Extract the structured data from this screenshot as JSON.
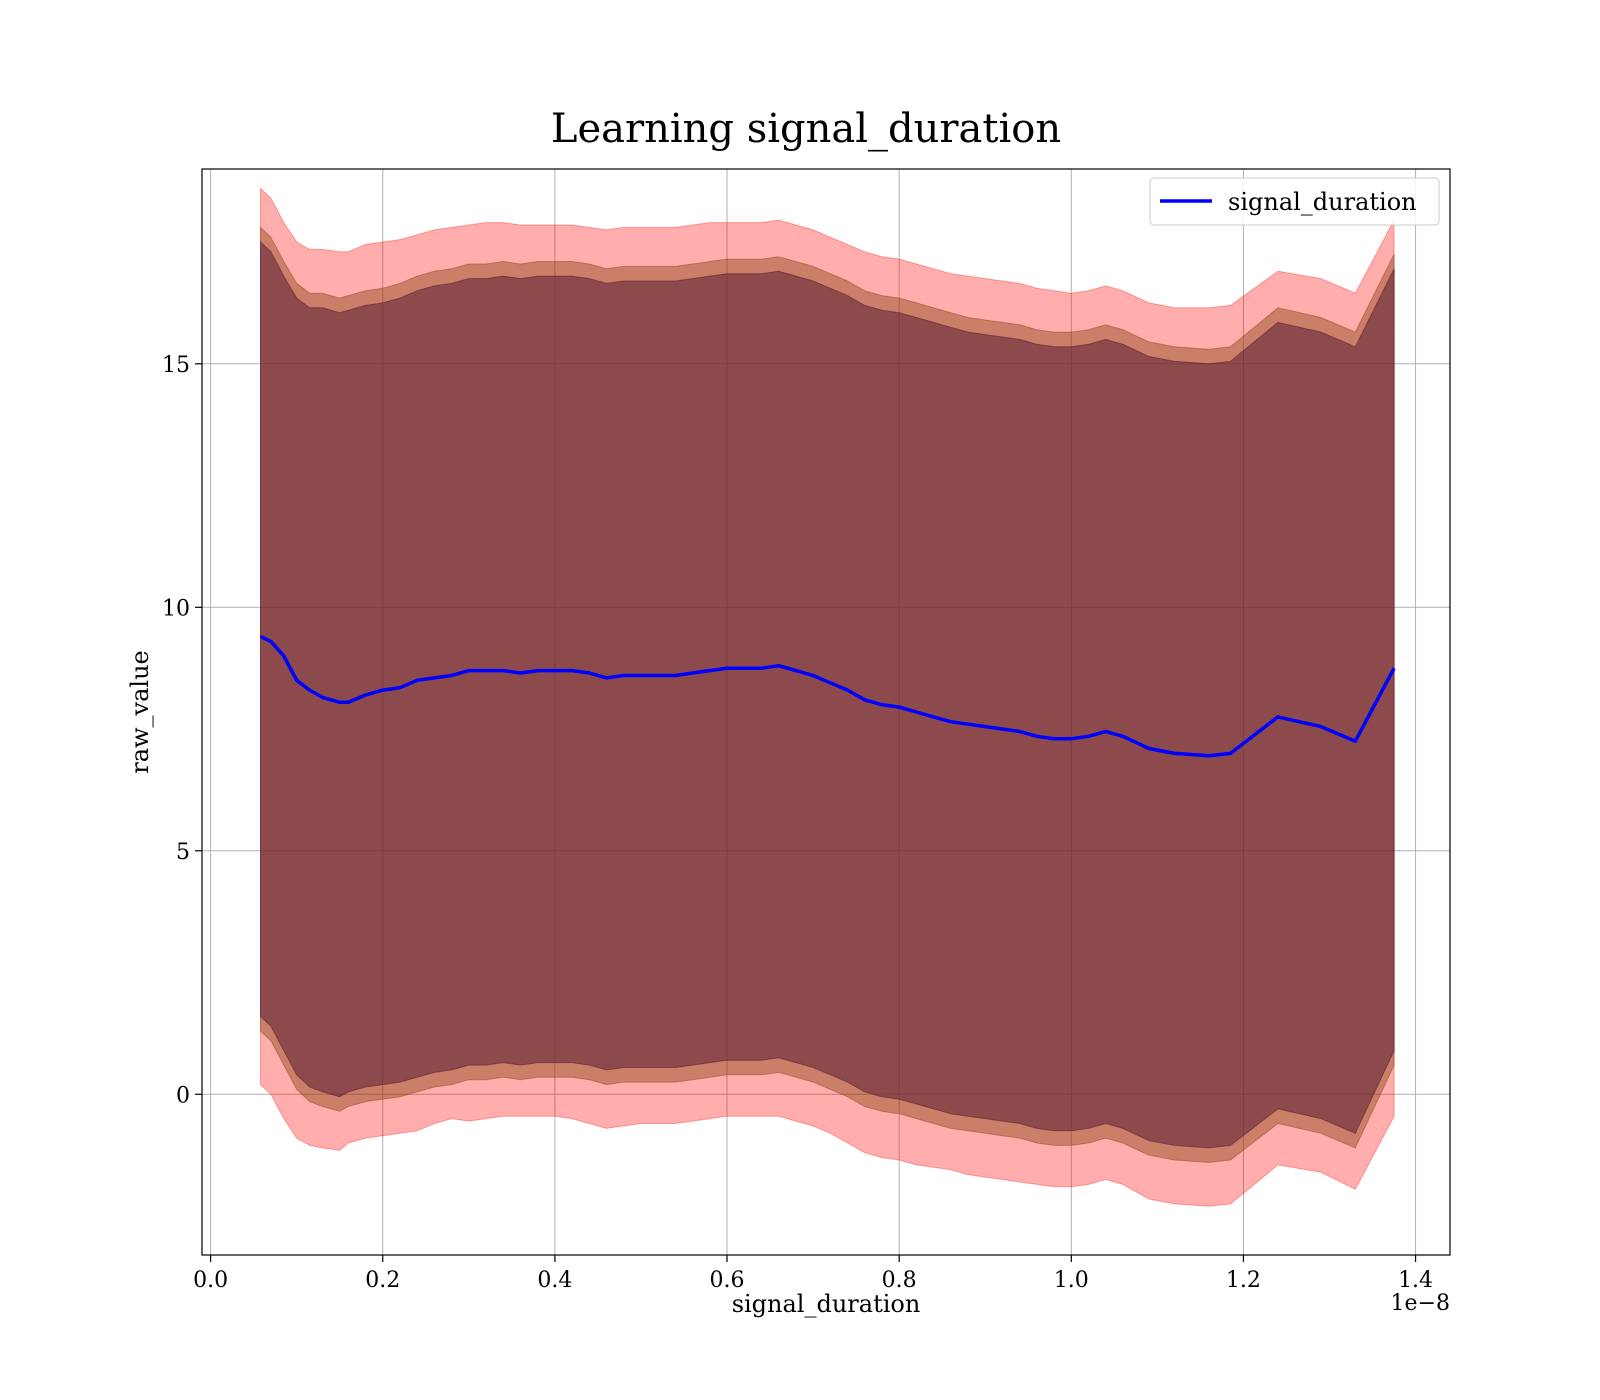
{
  "chart_data": {
    "type": "line",
    "title": "Learning signal_duration",
    "xlabel": "signal_duration",
    "ylabel": "raw_value",
    "x_offset_label": "1e−8",
    "xlim": [
      -0.01,
      1.44
    ],
    "ylim": [
      -3.3,
      19.0
    ],
    "x_ticks": [
      0.0,
      0.2,
      0.4,
      0.6,
      0.8,
      1.0,
      1.2,
      1.4
    ],
    "x_tick_labels": [
      "0.0",
      "0.2",
      "0.4",
      "0.6",
      "0.8",
      "1.0",
      "1.2",
      "1.4"
    ],
    "y_ticks": [
      0,
      5,
      10,
      15
    ],
    "y_tick_labels": [
      "0",
      "5",
      "10",
      "15"
    ],
    "grid": true,
    "legend": {
      "position": "top-right",
      "entries": [
        "signal_duration"
      ]
    },
    "colors": {
      "line": "#0000ff",
      "band_outer": "#ff0000",
      "band_middle": "#8b4513",
      "band_inner": "#5a1f35"
    },
    "series": [
      {
        "name": "signal_duration",
        "x": [
          0.058,
          0.07,
          0.085,
          0.1,
          0.115,
          0.13,
          0.15,
          0.16,
          0.18,
          0.2,
          0.22,
          0.24,
          0.26,
          0.28,
          0.3,
          0.32,
          0.34,
          0.36,
          0.38,
          0.4,
          0.42,
          0.44,
          0.46,
          0.48,
          0.5,
          0.52,
          0.54,
          0.56,
          0.58,
          0.6,
          0.62,
          0.64,
          0.66,
          0.68,
          0.7,
          0.72,
          0.74,
          0.76,
          0.78,
          0.8,
          0.82,
          0.84,
          0.86,
          0.88,
          0.9,
          0.92,
          0.94,
          0.96,
          0.98,
          1.0,
          1.02,
          1.04,
          1.06,
          1.09,
          1.12,
          1.16,
          1.185,
          1.24,
          1.29,
          1.33,
          1.375
        ],
        "values": [
          9.4,
          9.3,
          9.0,
          8.5,
          8.3,
          8.15,
          8.05,
          8.05,
          8.2,
          8.3,
          8.35,
          8.5,
          8.55,
          8.6,
          8.7,
          8.7,
          8.7,
          8.65,
          8.7,
          8.7,
          8.7,
          8.65,
          8.55,
          8.6,
          8.6,
          8.6,
          8.6,
          8.65,
          8.7,
          8.75,
          8.75,
          8.75,
          8.8,
          8.7,
          8.6,
          8.45,
          8.3,
          8.1,
          8.0,
          7.95,
          7.85,
          7.75,
          7.65,
          7.6,
          7.55,
          7.5,
          7.45,
          7.35,
          7.3,
          7.3,
          7.35,
          7.45,
          7.35,
          7.1,
          7.0,
          6.95,
          7.0,
          7.75,
          7.55,
          7.25,
          8.75
        ],
        "bands": [
          {
            "lower": [
              0.2,
              0.0,
              -0.5,
              -0.9,
              -1.05,
              -1.1,
              -1.15,
              -1.0,
              -0.9,
              -0.85,
              -0.8,
              -0.75,
              -0.6,
              -0.5,
              -0.55,
              -0.5,
              -0.45,
              -0.45,
              -0.45,
              -0.45,
              -0.5,
              -0.6,
              -0.7,
              -0.65,
              -0.6,
              -0.6,
              -0.6,
              -0.55,
              -0.5,
              -0.45,
              -0.45,
              -0.45,
              -0.45,
              -0.55,
              -0.65,
              -0.8,
              -1.0,
              -1.2,
              -1.3,
              -1.35,
              -1.45,
              -1.5,
              -1.55,
              -1.65,
              -1.7,
              -1.75,
              -1.8,
              -1.85,
              -1.9,
              -1.9,
              -1.85,
              -1.75,
              -1.85,
              -2.15,
              -2.25,
              -2.3,
              -2.25,
              -1.45,
              -1.6,
              -1.95,
              -0.45
            ],
            "upper": [
              18.6,
              18.4,
              17.9,
              17.5,
              17.35,
              17.35,
              17.3,
              17.3,
              17.45,
              17.5,
              17.55,
              17.65,
              17.75,
              17.8,
              17.85,
              17.9,
              17.9,
              17.85,
              17.85,
              17.85,
              17.85,
              17.8,
              17.75,
              17.8,
              17.8,
              17.8,
              17.8,
              17.85,
              17.9,
              17.9,
              17.9,
              17.9,
              17.95,
              17.85,
              17.75,
              17.6,
              17.45,
              17.3,
              17.2,
              17.15,
              17.05,
              16.95,
              16.85,
              16.8,
              16.75,
              16.7,
              16.65,
              16.55,
              16.5,
              16.45,
              16.5,
              16.6,
              16.5,
              16.25,
              16.15,
              16.15,
              16.2,
              16.9,
              16.75,
              16.45,
              17.95
            ]
          },
          {
            "lower": [
              1.3,
              1.1,
              0.6,
              0.1,
              -0.15,
              -0.25,
              -0.35,
              -0.25,
              -0.15,
              -0.1,
              -0.05,
              0.05,
              0.15,
              0.2,
              0.3,
              0.3,
              0.35,
              0.3,
              0.35,
              0.35,
              0.35,
              0.3,
              0.2,
              0.25,
              0.25,
              0.25,
              0.25,
              0.3,
              0.35,
              0.4,
              0.4,
              0.4,
              0.45,
              0.35,
              0.25,
              0.1,
              -0.05,
              -0.25,
              -0.35,
              -0.4,
              -0.5,
              -0.6,
              -0.7,
              -0.75,
              -0.8,
              -0.85,
              -0.9,
              -1.0,
              -1.05,
              -1.05,
              -1.0,
              -0.9,
              -1.0,
              -1.25,
              -1.35,
              -1.4,
              -1.35,
              -0.6,
              -0.8,
              -1.1,
              0.6
            ],
            "upper": [
              17.8,
              17.6,
              17.1,
              16.65,
              16.45,
              16.45,
              16.35,
              16.4,
              16.5,
              16.55,
              16.65,
              16.8,
              16.9,
              16.95,
              17.05,
              17.05,
              17.1,
              17.05,
              17.1,
              17.1,
              17.1,
              17.05,
              16.95,
              17.0,
              17.0,
              17.0,
              17.0,
              17.05,
              17.1,
              17.15,
              17.15,
              17.15,
              17.2,
              17.1,
              17.0,
              16.85,
              16.7,
              16.5,
              16.4,
              16.35,
              16.25,
              16.15,
              16.05,
              15.95,
              15.9,
              15.85,
              15.8,
              15.7,
              15.65,
              15.65,
              15.7,
              15.8,
              15.7,
              15.45,
              15.35,
              15.3,
              15.35,
              16.15,
              15.95,
              15.65,
              17.25
            ]
          },
          {
            "lower": [
              1.6,
              1.4,
              0.9,
              0.4,
              0.15,
              0.05,
              -0.05,
              0.05,
              0.15,
              0.2,
              0.25,
              0.35,
              0.45,
              0.5,
              0.6,
              0.6,
              0.65,
              0.6,
              0.65,
              0.65,
              0.65,
              0.6,
              0.5,
              0.55,
              0.55,
              0.55,
              0.55,
              0.6,
              0.65,
              0.7,
              0.7,
              0.7,
              0.75,
              0.65,
              0.55,
              0.4,
              0.25,
              0.05,
              -0.05,
              -0.1,
              -0.2,
              -0.3,
              -0.4,
              -0.45,
              -0.5,
              -0.55,
              -0.6,
              -0.7,
              -0.75,
              -0.75,
              -0.7,
              -0.6,
              -0.7,
              -0.95,
              -1.05,
              -1.1,
              -1.05,
              -0.3,
              -0.5,
              -0.8,
              0.9
            ],
            "upper": [
              17.5,
              17.3,
              16.8,
              16.35,
              16.15,
              16.15,
              16.05,
              16.1,
              16.2,
              16.25,
              16.35,
              16.5,
              16.6,
              16.65,
              16.75,
              16.75,
              16.8,
              16.75,
              16.8,
              16.8,
              16.8,
              16.75,
              16.65,
              16.7,
              16.7,
              16.7,
              16.7,
              16.75,
              16.8,
              16.85,
              16.85,
              16.85,
              16.9,
              16.8,
              16.7,
              16.55,
              16.4,
              16.2,
              16.1,
              16.05,
              15.95,
              15.85,
              15.75,
              15.65,
              15.6,
              15.55,
              15.5,
              15.4,
              15.35,
              15.35,
              15.4,
              15.5,
              15.4,
              15.15,
              15.05,
              15.0,
              15.05,
              15.85,
              15.65,
              15.35,
              16.95
            ]
          }
        ]
      }
    ]
  }
}
